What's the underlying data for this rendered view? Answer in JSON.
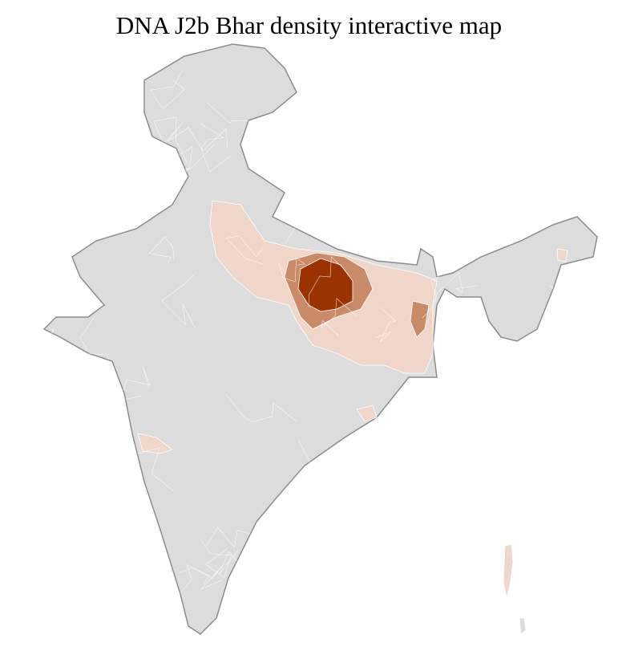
{
  "title": "DNA J2b Bhar density interactive map",
  "colors": {
    "no_data": "#dcdcdc",
    "border_state": "#8c8c8c",
    "border_district": "#ffffff",
    "density_low": "#efd6c9",
    "density_mid": "#c98a68",
    "density_high": "#9b3300"
  }
}
